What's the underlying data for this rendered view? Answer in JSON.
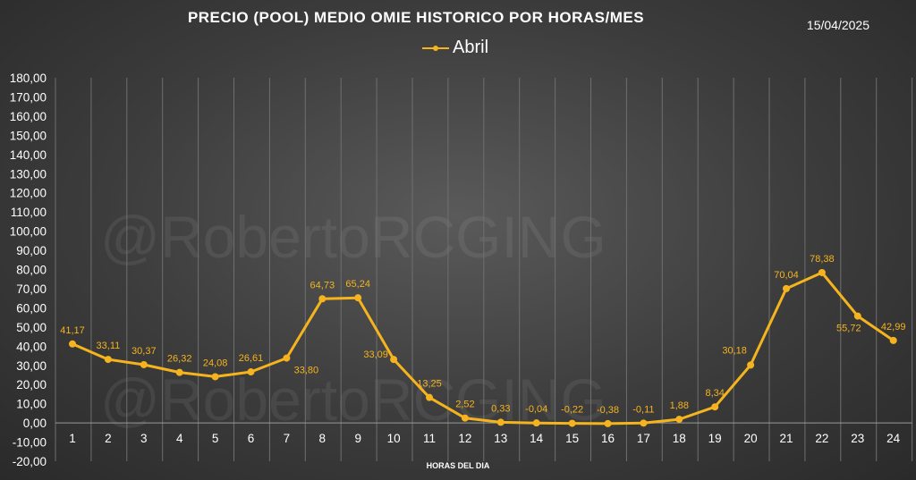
{
  "header": {
    "title": "PRECIO (POOL) MEDIO OMIE HISTORICO POR HORAS/MES",
    "date": "15/04/2025"
  },
  "watermark": "@RobertoRCGING",
  "chart_data": {
    "type": "line",
    "title": "PRECIO (POOL) MEDIO OMIE HISTORICO POR HORAS/MES",
    "xlabel": "HORAS DEL DIA",
    "ylabel": "",
    "ylim": [
      -20,
      180
    ],
    "ytick_step": 10,
    "grid": true,
    "legend_position": "top",
    "categories": [
      "1",
      "2",
      "3",
      "4",
      "5",
      "6",
      "7",
      "8",
      "9",
      "10",
      "11",
      "12",
      "13",
      "14",
      "15",
      "16",
      "17",
      "18",
      "19",
      "20",
      "21",
      "22",
      "23",
      "24"
    ],
    "series": [
      {
        "name": "Abril",
        "color": "#f5b41e",
        "values": [
          41.17,
          33.11,
          30.37,
          26.32,
          24.08,
          26.61,
          33.8,
          64.73,
          65.24,
          33.09,
          13.25,
          2.52,
          0.33,
          -0.04,
          -0.22,
          -0.38,
          -0.11,
          1.88,
          8.34,
          30.18,
          70.04,
          78.38,
          55.72,
          42.99
        ],
        "labels": [
          "41,17",
          "33,11",
          "30,37",
          "26,32",
          "24,08",
          "26,61",
          "33,80",
          "64,73",
          "65,24",
          "33,09",
          "13,25",
          "2,52",
          "0,33",
          "-0,04",
          "-0,22",
          "-0,38",
          "-0,11",
          "1,88",
          "8,34",
          "30,18",
          "70,04",
          "78,38",
          "55,72",
          "42,99"
        ]
      }
    ]
  }
}
